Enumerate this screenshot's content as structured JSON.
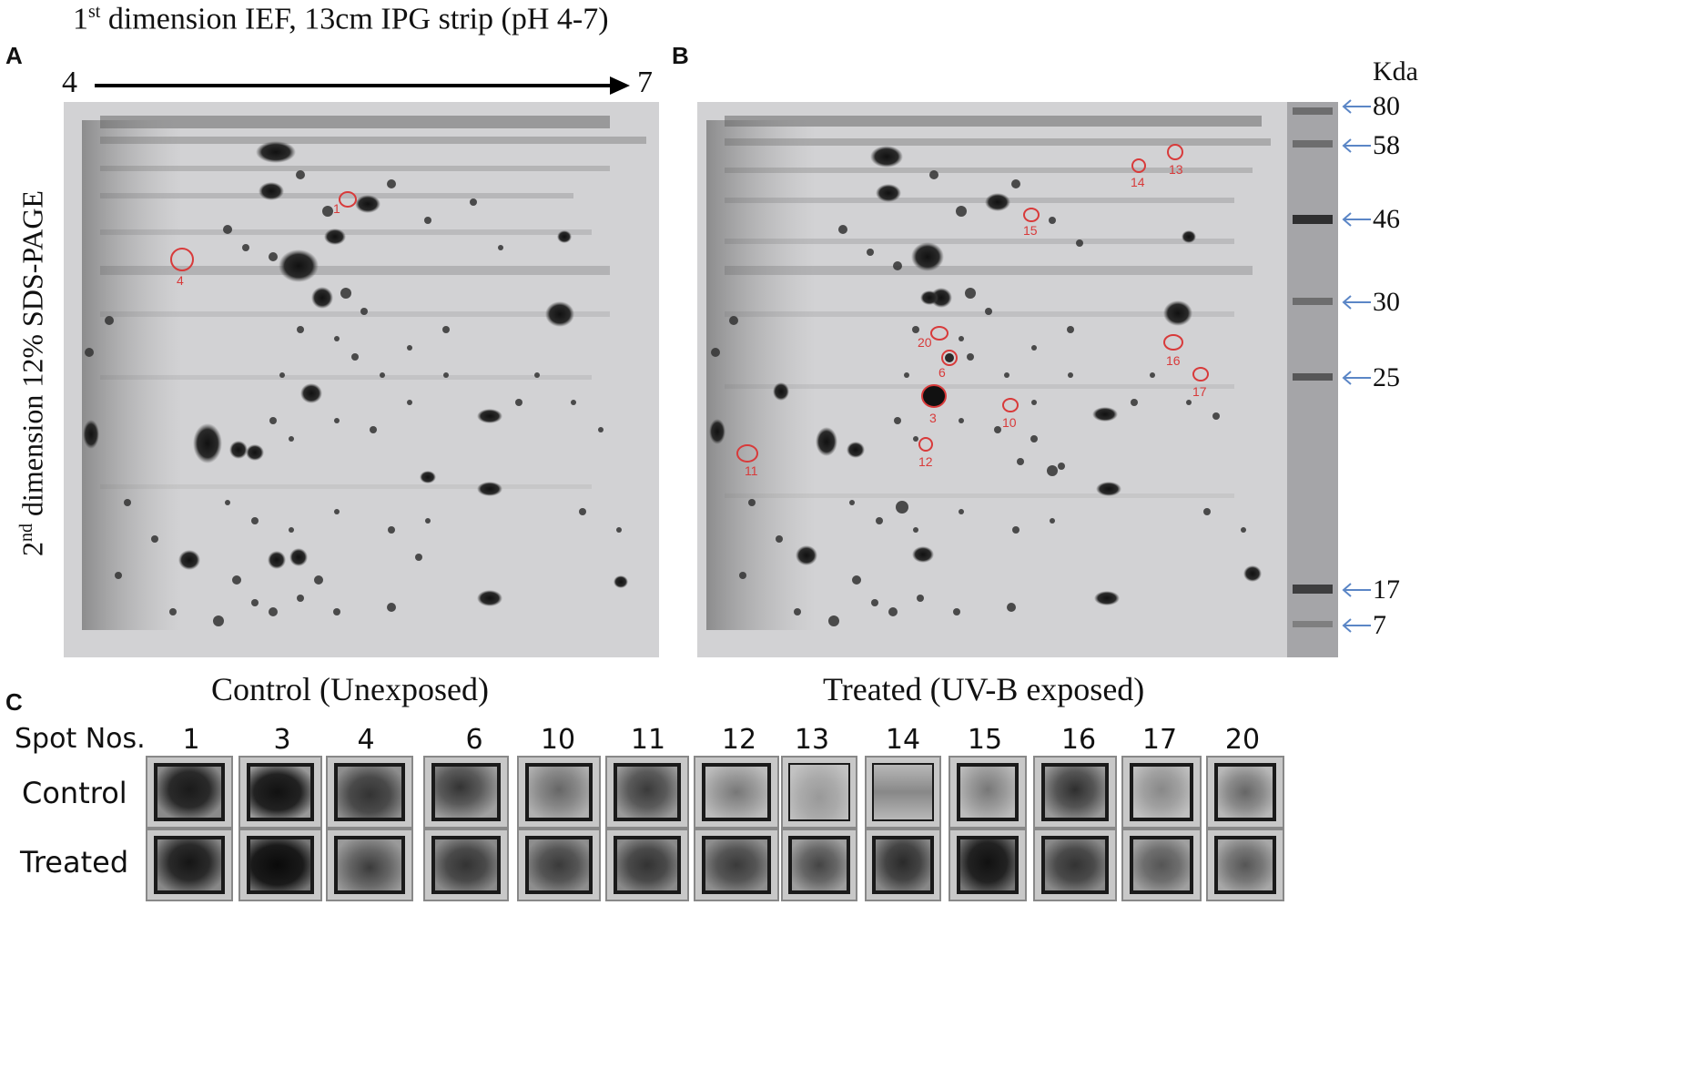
{
  "header": {
    "title_prefix": "1",
    "title_sup": "st",
    "title_rest": " dimension IEF, 13cm IPG strip (pH 4-7)"
  },
  "axis_left": {
    "start": "4",
    "end": "7"
  },
  "side_label": {
    "prefix": "2",
    "sup": "nd",
    "rest": " dimension 12% SDS-PAGE"
  },
  "panels": {
    "a_letter": "A",
    "b_letter": "B",
    "c_letter": "C",
    "a_caption": "Control (Unexposed)",
    "b_caption": "Treated (UV-B exposed)"
  },
  "ladder": {
    "unit": "Kda",
    "markers": [
      "80",
      "58",
      "46",
      "30",
      "25",
      "17",
      "7"
    ],
    "arrow_color": "#5b86c6"
  },
  "gel_a_spots": [
    {
      "label": "1"
    },
    {
      "label": "4"
    }
  ],
  "gel_b_spots": [
    {
      "label": "13"
    },
    {
      "label": "14"
    },
    {
      "label": "15"
    },
    {
      "label": "20"
    },
    {
      "label": "6"
    },
    {
      "label": "16"
    },
    {
      "label": "17"
    },
    {
      "label": "3"
    },
    {
      "label": "10"
    },
    {
      "label": "12"
    },
    {
      "label": "11"
    }
  ],
  "comparison": {
    "header_label": "Spot Nos.",
    "row_control": "Control",
    "row_treated": "Treated",
    "spot_numbers": [
      "1",
      "3",
      "4",
      "6",
      "10",
      "11",
      "12",
      "13",
      "14",
      "15",
      "16",
      "17",
      "20"
    ]
  },
  "colors": {
    "spot_marker": "#d83a3a",
    "gel_background": "#d4d4d6"
  }
}
